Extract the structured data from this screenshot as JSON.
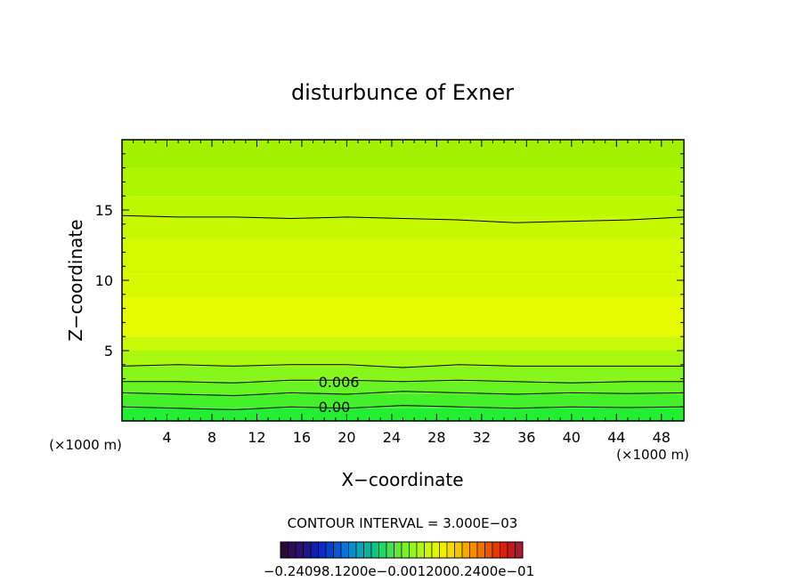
{
  "chart_data": {
    "type": "heatmap",
    "title": "disturbunce of Exner",
    "xlabel": "X−coordinate",
    "ylabel": "Z−coordinate",
    "x_unit_left": "(×1000 m)",
    "x_unit_right": "(×1000 m)",
    "xlim": [
      0,
      50
    ],
    "ylim": [
      0,
      20
    ],
    "x_ticks": [
      4,
      8,
      12,
      16,
      20,
      24,
      28,
      32,
      36,
      40,
      44,
      48
    ],
    "y_ticks": [
      5,
      10,
      15
    ],
    "x_tick_labels": [
      "4",
      "8",
      "12",
      "16",
      "20",
      "24",
      "28",
      "32",
      "36",
      "40",
      "44",
      "48"
    ],
    "y_tick_labels": [
      "5",
      "10",
      "15"
    ],
    "contour_interval_text": "CONTOUR INTERVAL = 3.000E−03",
    "contour_labels": [
      {
        "text": "0.006",
        "x": 17.8,
        "z": 2.8
      },
      {
        "text": "0.00",
        "x": 17.8,
        "z": 1.0
      }
    ],
    "contour_lines": [
      {
        "z": [
          1.0,
          0.9,
          0.8,
          1.0,
          0.9,
          1.1,
          1.0,
          0.9,
          1.0,
          0.95,
          1.0
        ]
      },
      {
        "z": [
          2.0,
          1.9,
          1.8,
          2.0,
          1.9,
          2.1,
          2.0,
          1.9,
          2.0,
          1.95,
          2.0
        ]
      },
      {
        "z": [
          2.8,
          2.8,
          2.7,
          2.9,
          2.9,
          2.8,
          2.9,
          2.8,
          2.7,
          2.8,
          2.8
        ]
      },
      {
        "z": [
          3.9,
          4.0,
          3.9,
          4.0,
          4.0,
          3.8,
          4.0,
          3.9,
          3.9,
          3.9,
          3.9
        ]
      },
      {
        "z": [
          14.6,
          14.5,
          14.5,
          14.4,
          14.5,
          14.4,
          14.3,
          14.1,
          14.2,
          14.3,
          14.5
        ]
      }
    ],
    "contour_x": [
      0,
      5,
      10,
      15,
      20,
      25,
      30,
      35,
      40,
      45,
      50
    ],
    "color_bands": [
      {
        "z0": 0.0,
        "z1": 0.9,
        "color": "#22ee33"
      },
      {
        "z0": 0.9,
        "z1": 1.9,
        "color": "#44f02a"
      },
      {
        "z0": 1.9,
        "z1": 2.8,
        "color": "#66f422"
      },
      {
        "z0": 2.8,
        "z1": 3.9,
        "color": "#88f61a"
      },
      {
        "z0": 3.9,
        "z1": 5.0,
        "color": "#aaf810"
      },
      {
        "z0": 5.0,
        "z1": 6.0,
        "color": "#c8fa08"
      },
      {
        "z0": 6.0,
        "z1": 8.8,
        "color": "#e6fa00"
      },
      {
        "z0": 8.8,
        "z1": 10.5,
        "color": "#d8fa00"
      },
      {
        "z0": 10.5,
        "z1": 13.0,
        "color": "#d4fa00"
      },
      {
        "z0": 13.0,
        "z1": 14.5,
        "color": "#c6f800"
      },
      {
        "z0": 14.5,
        "z1": 16.0,
        "color": "#bcf800"
      },
      {
        "z0": 16.0,
        "z1": 18.0,
        "color": "#aef600"
      },
      {
        "z0": 18.0,
        "z1": 20.0,
        "color": "#a2f200"
      }
    ],
    "colorbar": {
      "labels_text": "−0.24098.1200e−0.0012000.2400e−01",
      "colors": [
        "#2a0a3a",
        "#2d0e52",
        "#2a1070",
        "#1e1890",
        "#1020a8",
        "#0c2cc0",
        "#0a40d0",
        "#0a5ad8",
        "#0a74d6",
        "#0a8ec8",
        "#0aa4b4",
        "#0ab49c",
        "#12c482",
        "#2ad268",
        "#46de50",
        "#62e83a",
        "#7ef02a",
        "#98f41e",
        "#b2f614",
        "#caf80c",
        "#e0f806",
        "#eef000",
        "#f6dc00",
        "#f8c400",
        "#f8a800",
        "#f68c00",
        "#f27000",
        "#ec5400",
        "#e23a00",
        "#d42410",
        "#c21a20",
        "#aa1a30"
      ]
    }
  }
}
